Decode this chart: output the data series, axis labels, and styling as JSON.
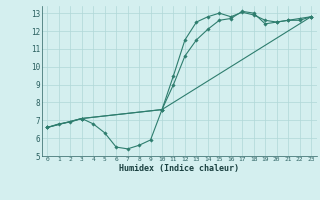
{
  "title": "",
  "xlabel": "Humidex (Indice chaleur)",
  "bg_color": "#d4efef",
  "line_color": "#2e7d6e",
  "grid_color": "#b0d8d8",
  "xlim": [
    -0.5,
    23.5
  ],
  "ylim": [
    5,
    13.4
  ],
  "xticks": [
    0,
    1,
    2,
    3,
    4,
    5,
    6,
    7,
    8,
    9,
    10,
    11,
    12,
    13,
    14,
    15,
    16,
    17,
    18,
    19,
    20,
    21,
    22,
    23
  ],
  "yticks": [
    5,
    6,
    7,
    8,
    9,
    10,
    11,
    12,
    13
  ],
  "series": [
    {
      "x": [
        0,
        1,
        2,
        3,
        4,
        5,
        6,
        7,
        8,
        9,
        10,
        11,
        12,
        13,
        14,
        15,
        16,
        17,
        18,
        19,
        20,
        21,
        22,
        23
      ],
      "y": [
        6.6,
        6.8,
        6.9,
        7.1,
        6.8,
        6.3,
        5.5,
        5.4,
        5.6,
        5.9,
        7.6,
        9.0,
        10.6,
        11.5,
        12.1,
        12.6,
        12.7,
        13.1,
        13.0,
        12.4,
        12.5,
        12.6,
        12.6,
        12.8
      ]
    },
    {
      "x": [
        0,
        3,
        10,
        11,
        12,
        13,
        14,
        15,
        16,
        17,
        18,
        19,
        20,
        21,
        22,
        23
      ],
      "y": [
        6.6,
        7.1,
        7.6,
        9.5,
        11.5,
        12.5,
        12.8,
        13.0,
        12.8,
        13.05,
        12.9,
        12.6,
        12.5,
        12.6,
        12.7,
        12.8
      ]
    },
    {
      "x": [
        0,
        3,
        10,
        23
      ],
      "y": [
        6.6,
        7.1,
        7.6,
        12.8
      ]
    }
  ]
}
